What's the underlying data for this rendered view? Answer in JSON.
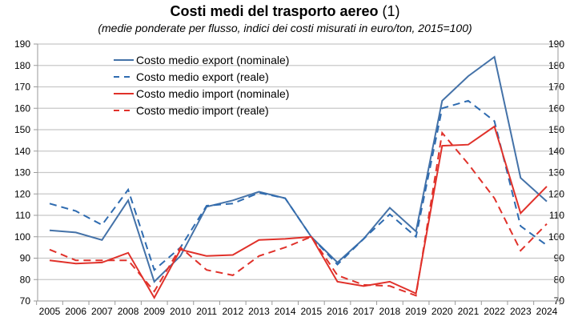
{
  "chart_data": {
    "type": "line",
    "title": "Costi medi del trasporto aereo",
    "title_note": "(1)",
    "subtitle": "(medie ponderate per flusso, indici dei costi misurati in euro/ton, 2015=100)",
    "xlabel": "",
    "ylabel": "",
    "ylim": [
      70,
      190
    ],
    "yticks": [
      70,
      80,
      90,
      100,
      110,
      120,
      130,
      140,
      150,
      160,
      170,
      180,
      190
    ],
    "secondary_yaxis": true,
    "grid": true,
    "legend_position": "top-left",
    "x": [
      "2005",
      "2006",
      "2007",
      "2008",
      "2009",
      "2010",
      "2011",
      "2012",
      "2013",
      "2014",
      "2015",
      "2016",
      "2017",
      "2018",
      "2019",
      "2020",
      "2021",
      "2022",
      "2023",
      "2024"
    ],
    "series": [
      {
        "name": "Costo medio export (nominale)",
        "color": "#4472A8",
        "style": "solid",
        "values": [
          103,
          102,
          98.5,
          117,
          79,
          91,
          114,
          117,
          121,
          118,
          100,
          88,
          99,
          113.5,
          102.5,
          163.5,
          175,
          184,
          127.5,
          116.5
        ]
      },
      {
        "name": "Costo medio export (reale)",
        "color": "#2E6BB0",
        "style": "dashed",
        "values": [
          115.5,
          112,
          105.5,
          122,
          84.5,
          95,
          114.5,
          115.5,
          120.5,
          118,
          100,
          87,
          99,
          110.5,
          100,
          160,
          163.5,
          154,
          105,
          96
        ]
      },
      {
        "name": "Costo medio import (nominale)",
        "color": "#E0312A",
        "style": "solid",
        "values": [
          89,
          87.5,
          88,
          92.5,
          71.5,
          94,
          91,
          91.5,
          98.5,
          99,
          100,
          79,
          77,
          79,
          73.5,
          142.5,
          143,
          151.5,
          111,
          123.5
        ]
      },
      {
        "name": "Costo medio import (reale)",
        "color": "#E0312A",
        "style": "dashed",
        "values": [
          94,
          89,
          89,
          89,
          74.5,
          95,
          84.5,
          82,
          91,
          95,
          100,
          82,
          77.5,
          77,
          72.5,
          148.5,
          134,
          118,
          93.5,
          106
        ]
      }
    ]
  }
}
